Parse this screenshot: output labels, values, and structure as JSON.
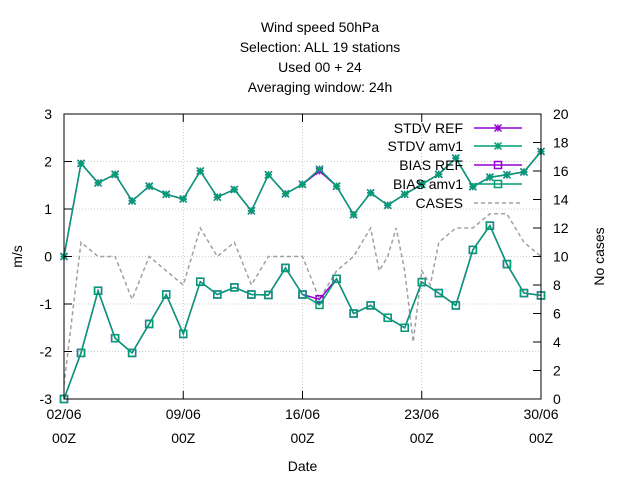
{
  "chart_data": {
    "type": "line",
    "title_lines": [
      "Wind speed 50hPa",
      "Selection: ALL      19 stations",
      "Used  00  + 24",
      "Averaging window: 24h"
    ],
    "xlabel": "Date",
    "ylabel": "m/s",
    "y2label": "No cases",
    "xlim": [
      0,
      28
    ],
    "ylim": [
      -3,
      3
    ],
    "y2lim": [
      0,
      20
    ],
    "x_ticks": [
      {
        "x": 0,
        "line1": "02/06",
        "line2": "00Z"
      },
      {
        "x": 7,
        "line1": "09/06",
        "line2": "00Z"
      },
      {
        "x": 14,
        "line1": "16/06",
        "line2": "00Z"
      },
      {
        "x": 21,
        "line1": "23/06",
        "line2": "00Z"
      },
      {
        "x": 28,
        "line1": "30/06",
        "line2": "00Z"
      }
    ],
    "y_ticks": [
      "-3",
      "-2",
      "-1",
      "0",
      "1",
      "2",
      "3"
    ],
    "y2_ticks": [
      "0",
      "2",
      "4",
      "6",
      "8",
      "10",
      "12",
      "14",
      "16",
      "18",
      "20"
    ],
    "x": [
      0,
      1,
      2,
      3,
      4,
      5,
      6,
      7,
      8,
      9,
      10,
      11,
      12,
      13,
      14,
      15,
      16,
      17,
      18,
      19,
      20,
      21,
      22,
      23,
      24,
      25,
      26,
      27,
      28
    ],
    "series": [
      {
        "name": "STDV REF",
        "axis": "y1",
        "color": "#9400d3",
        "marker": "star",
        "values": [
          0,
          1.96,
          1.55,
          1.73,
          1.17,
          1.48,
          1.31,
          1.21,
          1.8,
          1.25,
          1.41,
          0.96,
          1.72,
          1.32,
          1.52,
          1.8,
          1.48,
          0.88,
          1.34,
          1.08,
          1.31,
          1.52,
          1.73,
          2.07,
          1.47,
          1.67,
          1.72,
          1.78,
          2.21
        ]
      },
      {
        "name": "STDV amv1",
        "axis": "y1",
        "color": "#009e73",
        "marker": "star",
        "values": [
          0,
          1.96,
          1.55,
          1.73,
          1.17,
          1.48,
          1.31,
          1.21,
          1.8,
          1.25,
          1.41,
          0.96,
          1.72,
          1.32,
          1.52,
          1.84,
          1.48,
          0.88,
          1.34,
          1.08,
          1.31,
          1.52,
          1.73,
          2.07,
          1.47,
          1.67,
          1.72,
          1.78,
          2.21
        ]
      },
      {
        "name": "BIAS REF",
        "axis": "y1",
        "color": "#9400d3",
        "marker": "square",
        "values": [
          -3,
          -2.03,
          -0.72,
          -1.72,
          -2.03,
          -1.42,
          -0.8,
          -1.63,
          -0.53,
          -0.8,
          -0.65,
          -0.8,
          -0.81,
          -0.24,
          -0.8,
          -0.9,
          -0.47,
          -1.2,
          -1.03,
          -1.29,
          -1.5,
          -0.54,
          -0.77,
          -1.03,
          0.14,
          0.65,
          -0.16,
          -0.77,
          -0.82
        ]
      },
      {
        "name": "BIAS amv1",
        "axis": "y1",
        "color": "#009e73",
        "marker": "square",
        "values": [
          -3,
          -2.03,
          -0.72,
          -1.72,
          -2.03,
          -1.42,
          -0.8,
          -1.63,
          -0.53,
          -0.8,
          -0.65,
          -0.8,
          -0.81,
          -0.24,
          -0.8,
          -1.02,
          -0.47,
          -1.2,
          -1.03,
          -1.29,
          -1.5,
          -0.54,
          -0.77,
          -1.03,
          0.14,
          0.65,
          -0.16,
          -0.77,
          -0.82
        ]
      },
      {
        "name": "CASES",
        "axis": "y2",
        "color": "#a0a0a0",
        "marker": "none",
        "dashed": true,
        "x": [
          0,
          1,
          2,
          3,
          4,
          5,
          6,
          7,
          7.5,
          8,
          9,
          10,
          11,
          12,
          13,
          14,
          15,
          16,
          17,
          18,
          18.5,
          19,
          19.5,
          20,
          20.5,
          21,
          21.5,
          22,
          23,
          24,
          25,
          26,
          27,
          28
        ],
        "values": [
          1,
          11,
          10,
          10,
          7,
          10,
          9,
          8,
          10,
          12,
          10,
          11,
          8,
          10,
          10,
          10,
          7,
          9,
          10,
          12,
          9,
          10,
          12,
          9,
          4,
          9,
          8,
          11,
          12,
          12,
          13,
          13,
          11,
          10
        ]
      }
    ],
    "legend_position": "top-right",
    "grid": true
  }
}
